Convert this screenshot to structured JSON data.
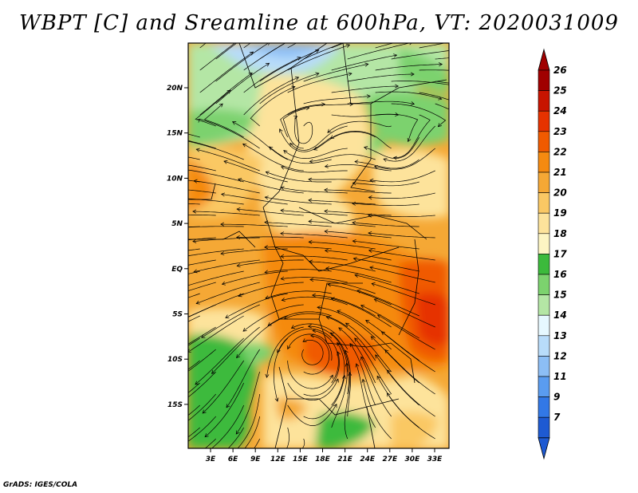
{
  "title": "WBPT [C] and Sreamline at 600hPa, VT: 2020031009",
  "footer": "GrADS: IGES/COLA",
  "latitude_labels": [
    "20N",
    "15N",
    "10N",
    "5N",
    "EQ",
    "5S",
    "10S",
    "15S"
  ],
  "longitude_labels": [
    "3E",
    "6E",
    "9E",
    "12E",
    "15E",
    "18E",
    "21E",
    "24E",
    "27E",
    "30E",
    "33E"
  ],
  "colorbar": {
    "labels": [
      "26",
      "25",
      "24",
      "23",
      "22",
      "21",
      "20",
      "19",
      "18",
      "17",
      "16",
      "15",
      "14",
      "13",
      "12",
      "11",
      "9",
      "7"
    ],
    "colors": [
      "#a00000",
      "#c81400",
      "#e63200",
      "#f05a00",
      "#f58a10",
      "#f5a835",
      "#fac864",
      "#fde39b",
      "#fdf5c3",
      "#3cba3c",
      "#7cd26e",
      "#b4e6a5",
      "#e6f8ff",
      "#b8dcfa",
      "#8cbef5",
      "#5a9cf0",
      "#3278e6",
      "#1e5ad2"
    ],
    "top_cap_color": "#a00000",
    "bottom_cap_color": "#1e5ad2"
  },
  "map": {
    "variable": "WBPT",
    "units": "C",
    "level": "600hPa",
    "valid_time": "2020031009",
    "overlay": "streamlines"
  }
}
